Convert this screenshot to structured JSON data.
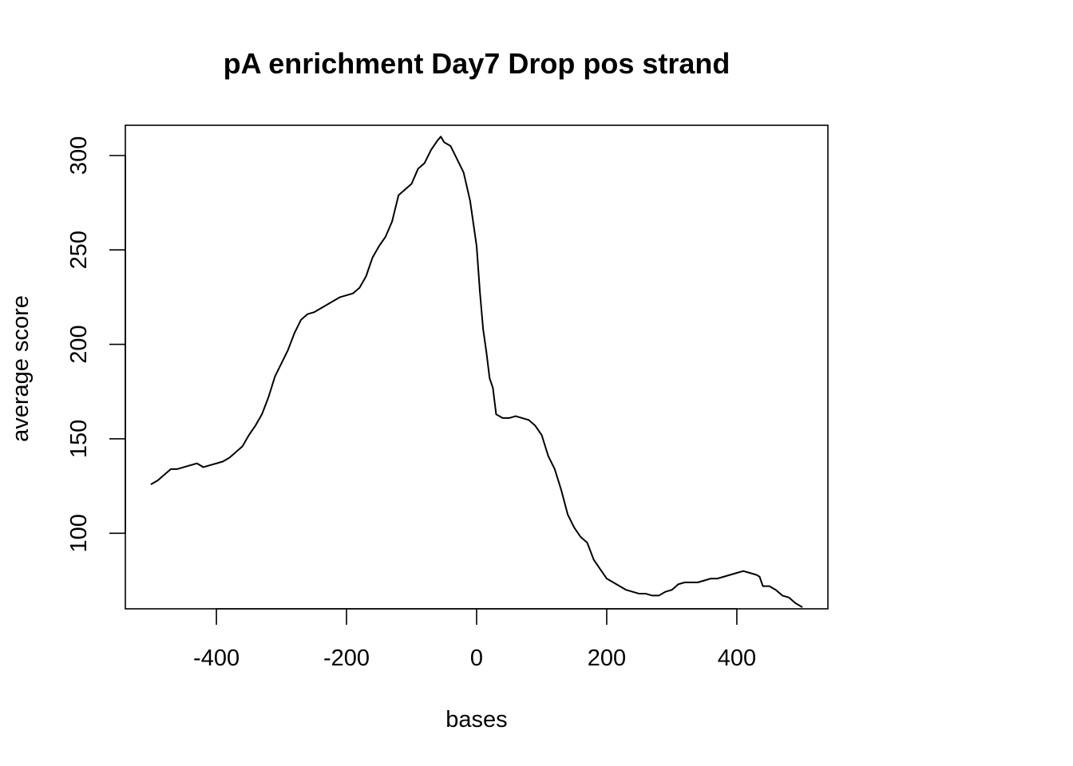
{
  "chart_data": {
    "type": "line",
    "title": "pA enrichment Day7 Drop pos strand",
    "xlabel": "bases",
    "ylabel": "average score",
    "xlim": [
      -540,
      540
    ],
    "ylim": [
      60,
      316
    ],
    "x_ticks": [
      -400,
      -200,
      0,
      200,
      400
    ],
    "x_tick_labels": [
      "-400",
      "-200",
      "0",
      "200",
      "400"
    ],
    "y_ticks": [
      100,
      150,
      200,
      250,
      300
    ],
    "y_tick_labels": [
      "100",
      "150",
      "200",
      "250",
      "300"
    ],
    "grid": false,
    "legend": "none",
    "line_color": "#000000",
    "series": [
      {
        "x": [
          -500,
          -490,
          -480,
          -470,
          -460,
          -450,
          -440,
          -430,
          -420,
          -410,
          -400,
          -390,
          -380,
          -370,
          -360,
          -350,
          -340,
          -330,
          -320,
          -310,
          -300,
          -290,
          -280,
          -270,
          -260,
          -250,
          -240,
          -230,
          -220,
          -210,
          -200,
          -190,
          -180,
          -170,
          -160,
          -150,
          -140,
          -130,
          -120,
          -110,
          -100,
          -90,
          -80,
          -70,
          -60,
          -55,
          -50,
          -40,
          -30,
          -20,
          -10,
          0,
          5,
          10,
          15,
          20,
          25,
          30,
          40,
          50,
          60,
          70,
          80,
          90,
          100,
          110,
          120,
          130,
          140,
          150,
          160,
          170,
          180,
          190,
          200,
          210,
          220,
          230,
          240,
          250,
          260,
          270,
          280,
          290,
          300,
          310,
          320,
          330,
          340,
          350,
          360,
          370,
          380,
          390,
          400,
          410,
          420,
          430,
          435,
          440,
          450,
          460,
          470,
          480,
          490,
          500
        ],
        "y": [
          126,
          128,
          131,
          134,
          134,
          135,
          136,
          137,
          135,
          136,
          137,
          138,
          140,
          143,
          146,
          152,
          157,
          163,
          172,
          183,
          190,
          197,
          206,
          213,
          216,
          217,
          219,
          221,
          223,
          225,
          226,
          227,
          230,
          236,
          246,
          252,
          257,
          265,
          279,
          282,
          285,
          293,
          296,
          303,
          308,
          310,
          307,
          305,
          298,
          291,
          276,
          252,
          228,
          208,
          196,
          182,
          177,
          163,
          161,
          161,
          162,
          161,
          160,
          157,
          152,
          141,
          134,
          123,
          110,
          103,
          98,
          95,
          86,
          81,
          76,
          74,
          72,
          70,
          69,
          68,
          68,
          67,
          67,
          69,
          70,
          73,
          74,
          74,
          74,
          75,
          76,
          76,
          77,
          78,
          79,
          80,
          79,
          78,
          77,
          72,
          72,
          70,
          67,
          66,
          63,
          61
        ]
      }
    ]
  }
}
